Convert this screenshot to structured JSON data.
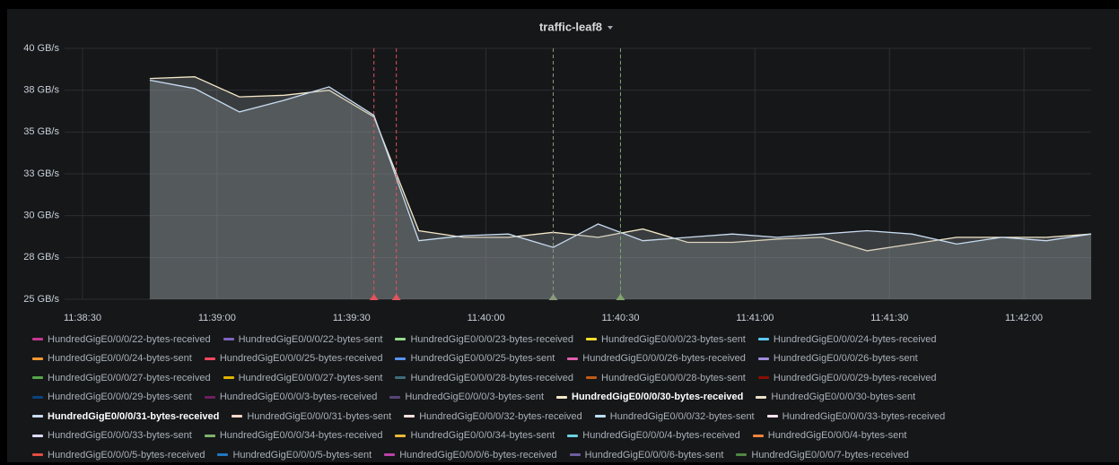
{
  "chart_data": {
    "type": "line",
    "title": "traffic-leaf8",
    "x": [
      "11:38:45",
      "11:38:55",
      "11:39:05",
      "11:39:15",
      "11:39:25",
      "11:39:35",
      "11:39:45",
      "11:39:55",
      "11:40:05",
      "11:40:15",
      "11:40:25",
      "11:40:35",
      "11:40:45",
      "11:40:55",
      "11:41:05",
      "11:41:15",
      "11:41:25",
      "11:41:35",
      "11:41:45",
      "11:41:55",
      "11:42:05",
      "11:42:15"
    ],
    "xlim": [
      "11:38:26",
      "11:42:15"
    ],
    "xticks": [
      "11:38:30",
      "11:39:00",
      "11:39:30",
      "11:40:00",
      "11:40:30",
      "11:41:00",
      "11:41:30",
      "11:42:00"
    ],
    "ylim": [
      25,
      40
    ],
    "yticks": [
      {
        "value": 25,
        "label": "25 GB/s"
      },
      {
        "value": 27.5,
        "label": "28 GB/s"
      },
      {
        "value": 30,
        "label": "30 GB/s"
      },
      {
        "value": 32.5,
        "label": "33 GB/s"
      },
      {
        "value": 35,
        "label": "35 GB/s"
      },
      {
        "value": 37.5,
        "label": "38 GB/s"
      },
      {
        "value": 40,
        "label": "40 GB/s"
      }
    ],
    "grid": true,
    "annotations": [
      {
        "x": "11:39:35",
        "color": "#e0535c"
      },
      {
        "x": "11:39:40",
        "color": "#e0535c"
      },
      {
        "x": "11:40:15",
        "color": "#8a9a7a"
      },
      {
        "x": "11:40:30",
        "color": "#7fa66d"
      }
    ],
    "series": [
      {
        "name": "HundredGigE0/0/0/22-bytes-received",
        "color": "#c4388f"
      },
      {
        "name": "HundredGigE0/0/0/22-bytes-sent",
        "color": "#7f65c0"
      },
      {
        "name": "HundredGigE0/0/0/23-bytes-received",
        "color": "#96d98d"
      },
      {
        "name": "HundredGigE0/0/0/23-bytes-sent",
        "color": "#fade2a"
      },
      {
        "name": "HundredGigE0/0/0/24-bytes-received",
        "color": "#5ac8fa"
      },
      {
        "name": "HundredGigE0/0/0/24-bytes-sent",
        "color": "#ff9830"
      },
      {
        "name": "HundredGigE0/0/0/25-bytes-received",
        "color": "#f2495c"
      },
      {
        "name": "HundredGigE0/0/0/25-bytes-sent",
        "color": "#5794f2"
      },
      {
        "name": "HundredGigE0/0/0/26-bytes-received",
        "color": "#e05fb0"
      },
      {
        "name": "HundredGigE0/0/0/26-bytes-sent",
        "color": "#a08cdc"
      },
      {
        "name": "HundredGigE0/0/0/27-bytes-received",
        "color": "#56a64b"
      },
      {
        "name": "HundredGigE0/0/0/27-bytes-sent",
        "color": "#e0b400"
      },
      {
        "name": "HundredGigE0/0/0/28-bytes-received",
        "color": "#3f6b79"
      },
      {
        "name": "HundredGigE0/0/0/28-bytes-sent",
        "color": "#c15c17"
      },
      {
        "name": "HundredGigE0/0/0/29-bytes-received",
        "color": "#890f02"
      },
      {
        "name": "HundredGigE0/0/0/29-bytes-sent",
        "color": "#0a437c"
      },
      {
        "name": "HundredGigE0/0/0/3-bytes-received",
        "color": "#6d1f62"
      },
      {
        "name": "HundredGigE0/0/0/3-bytes-sent",
        "color": "#584477"
      },
      {
        "name": "HundredGigE0/0/0/30-bytes-received",
        "color": "#f4e8c8",
        "highlight": true,
        "values": [
          38.2,
          38.3,
          37.1,
          37.2,
          37.5,
          35.9,
          29.1,
          28.7,
          28.7,
          29.0,
          28.7,
          29.2,
          28.4,
          28.4,
          28.6,
          28.7,
          27.9,
          28.3,
          28.7,
          28.7,
          28.7,
          28.9
        ]
      },
      {
        "name": "HundredGigE0/0/0/30-bytes-sent",
        "color": "#eae0c8"
      },
      {
        "name": "HundredGigE0/0/0/31-bytes-received",
        "color": "#c8dcf0",
        "highlight": true,
        "values": [
          38.1,
          37.6,
          36.2,
          36.9,
          37.7,
          36.0,
          28.5,
          28.8,
          28.9,
          28.1,
          29.5,
          28.5,
          28.7,
          28.9,
          28.7,
          28.9,
          29.1,
          28.9,
          28.3,
          28.7,
          28.5,
          28.9
        ]
      },
      {
        "name": "HundredGigE0/0/0/31-bytes-sent",
        "color": "#f9d9c9"
      },
      {
        "name": "HundredGigE0/0/0/32-bytes-received",
        "color": "#fce2de"
      },
      {
        "name": "HundredGigE0/0/0/32-bytes-sent",
        "color": "#badff4"
      },
      {
        "name": "HundredGigE0/0/0/33-bytes-received",
        "color": "#f9e2f0"
      },
      {
        "name": "HundredGigE0/0/0/33-bytes-sent",
        "color": "#dedaf7"
      },
      {
        "name": "HundredGigE0/0/0/34-bytes-received",
        "color": "#7eb26d"
      },
      {
        "name": "HundredGigE0/0/0/34-bytes-sent",
        "color": "#eab839"
      },
      {
        "name": "HundredGigE0/0/0/4-bytes-received",
        "color": "#6ed0e0"
      },
      {
        "name": "HundredGigE0/0/0/4-bytes-sent",
        "color": "#ef843c"
      },
      {
        "name": "HundredGigE0/0/0/5-bytes-received",
        "color": "#e24d42"
      },
      {
        "name": "HundredGigE0/0/0/5-bytes-sent",
        "color": "#1f78c1"
      },
      {
        "name": "HundredGigE0/0/0/6-bytes-received",
        "color": "#ba43a9"
      },
      {
        "name": "HundredGigE0/0/0/6-bytes-sent",
        "color": "#705da0"
      },
      {
        "name": "HundredGigE0/0/0/7-bytes-received",
        "color": "#508642"
      }
    ]
  }
}
